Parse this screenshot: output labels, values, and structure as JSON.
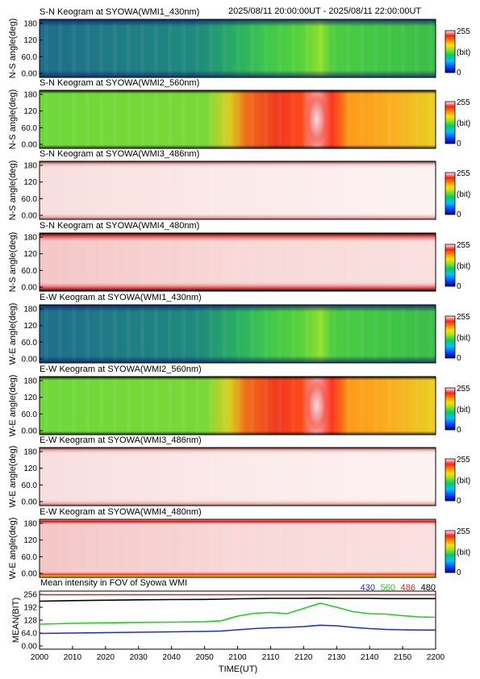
{
  "header": {
    "time_range": "2025/08/11 20:00:00UT - 2025/08/11 22:00:00UT"
  },
  "keograms": [
    {
      "title": "S-N Keogram at SYOWA(WMI1_430nm)",
      "ylabel": "N-S angle(deg)",
      "palette": "blue-green",
      "wavelength": "430nm"
    },
    {
      "title": "S-N Keogram at SYOWA(WMI2_560nm)",
      "ylabel": "N-S angle(deg)",
      "palette": "green-red",
      "wavelength": "560nm"
    },
    {
      "title": "S-N Keogram at SYOWA(WMI3_486nm)",
      "ylabel": "N-S angle(deg)",
      "palette": "pale",
      "wavelength": "486nm"
    },
    {
      "title": "S-N Keogram at SYOWA(WMI4_480nm)",
      "ylabel": "N-S angle(deg)",
      "palette": "pale-red",
      "wavelength": "480nm"
    },
    {
      "title": "E-W Keogram at SYOWA(WMI1_430nm)",
      "ylabel": "W-E angle(deg)",
      "palette": "blue-green",
      "wavelength": "430nm"
    },
    {
      "title": "E-W Keogram at SYOWA(WMI2_560nm)",
      "ylabel": "W-E angle(deg)",
      "palette": "green-red",
      "wavelength": "560nm"
    },
    {
      "title": "E-W Keogram at SYOWA(WMI3_486nm)",
      "ylabel": "W-E angle(deg)",
      "palette": "pale",
      "wavelength": "486nm"
    },
    {
      "title": "E-W Keogram at SYOWA(WMI4_480nm)",
      "ylabel": "W-E angle(deg)",
      "palette": "pale-red-edge",
      "wavelength": "480nm"
    }
  ],
  "keogram_yticks": [
    "180",
    "120",
    "60.0",
    "0.00"
  ],
  "colorbar": {
    "max": "255",
    "unit": "(bit)",
    "min": "0"
  },
  "chart_data": {
    "type": "line",
    "title": "Mean intensity in FOV of Syowa WMI",
    "xlabel": "TIME(UT)",
    "ylabel": "MEAN(BIT)",
    "x_ticks": [
      "2000",
      "2010",
      "2020",
      "2030",
      "2040",
      "2050",
      "2100",
      "2110",
      "2120",
      "2130",
      "2140",
      "2150",
      "2200"
    ],
    "y_ticks": [
      "256",
      "192",
      "128",
      "64.0",
      "0.00"
    ],
    "xlim": [
      0,
      120
    ],
    "ylim": [
      0,
      256
    ],
    "x_minutes": [
      0,
      10,
      20,
      30,
      40,
      50,
      55,
      60,
      65,
      70,
      75,
      80,
      85,
      90,
      95,
      100,
      105,
      110,
      115,
      120
    ],
    "series": [
      {
        "name": "430",
        "color": "#1f2fc8",
        "values": [
          62,
          64,
          66,
          68,
          70,
          72,
          74,
          80,
          86,
          90,
          92,
          96,
          103,
          100,
          92,
          86,
          82,
          80,
          79,
          79
        ]
      },
      {
        "name": "560",
        "color": "#22cc22",
        "values": [
          108,
          112,
          115,
          117,
          118,
          120,
          125,
          148,
          162,
          166,
          160,
          186,
          212,
          192,
          170,
          160,
          158,
          150,
          144,
          142
        ]
      },
      {
        "name": "486",
        "color": "#e02020",
        "values": [
          254,
          254,
          254,
          254,
          254,
          254,
          254,
          254,
          254,
          254,
          254,
          254,
          254,
          254,
          254,
          254,
          254,
          254,
          254,
          254
        ]
      },
      {
        "name": "480",
        "color": "#000000",
        "values": [
          222,
          225,
          227,
          229,
          230,
          231,
          232,
          234,
          235,
          236,
          236,
          236,
          237,
          236,
          236,
          236,
          235,
          235,
          235,
          235
        ]
      }
    ]
  },
  "colors": {
    "blue": "#1f2fc8",
    "green": "#22cc22",
    "red": "#e02020",
    "black": "#000000"
  }
}
